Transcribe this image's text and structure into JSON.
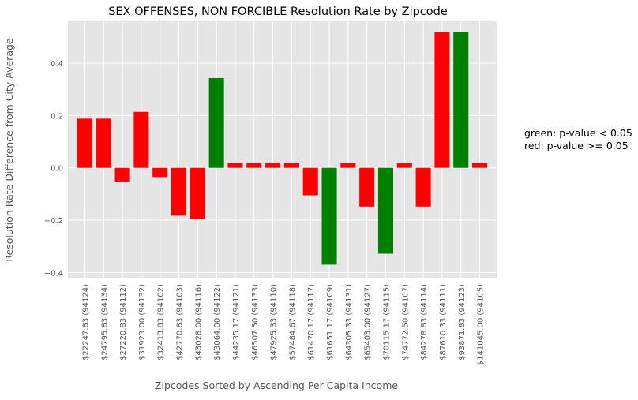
{
  "chart_data": {
    "type": "bar",
    "title": "SEX OFFENSES, NON FORCIBLE Resolution Rate by Zipcode",
    "xlabel": "Zipcodes Sorted by Ascending Per Capita Income",
    "ylabel": "Resolution Rate Difference from City Average",
    "ylim": [
      -0.42,
      0.56
    ],
    "yticks": [
      -0.4,
      -0.2,
      0.0,
      0.2,
      0.4
    ],
    "ytick_labels": [
      "−0.4",
      "−0.2",
      "0.0",
      "0.2",
      "0.4"
    ],
    "grid": true,
    "categories": [
      "$22247.83  (94124)",
      "$24795.83  (94134)",
      "$27220.83  (94112)",
      "$31923.00  (94132)",
      "$32413.83  (94102)",
      "$42770.83  (94103)",
      "$43028.00  (94116)",
      "$43064.00  (94122)",
      "$44235.17  (94121)",
      "$46507.50  (94133)",
      "$47925.33  (94110)",
      "$57484.67  (94118)",
      "$61470.17  (94117)",
      "$61651.17  (94109)",
      "$64305.33  (94131)",
      "$65403.00  (94127)",
      "$70115.17  (94115)",
      "$74772.50  (94107)",
      "$84278.83  (94114)",
      "$87610.33  (94111)",
      "$93871.83  (94123)",
      "$141045.00  (94105)"
    ],
    "values": [
      0.188,
      0.188,
      -0.055,
      0.214,
      -0.035,
      -0.183,
      -0.195,
      0.343,
      0.018,
      0.018,
      0.018,
      0.018,
      -0.105,
      -0.37,
      0.018,
      -0.148,
      -0.328,
      0.018,
      -0.148,
      0.52,
      0.52,
      0.018
    ],
    "significant": [
      false,
      false,
      false,
      false,
      false,
      false,
      false,
      true,
      false,
      false,
      false,
      false,
      false,
      true,
      false,
      false,
      true,
      false,
      false,
      false,
      true,
      false
    ],
    "colors": {
      "significant": "#008000",
      "not_significant": "#ff0000",
      "plot_bg": "#e5e5e5",
      "grid": "#ffffff"
    },
    "legend_text": [
      "green: p-value < 0.05",
      "red: p-value >= 0.05"
    ]
  }
}
